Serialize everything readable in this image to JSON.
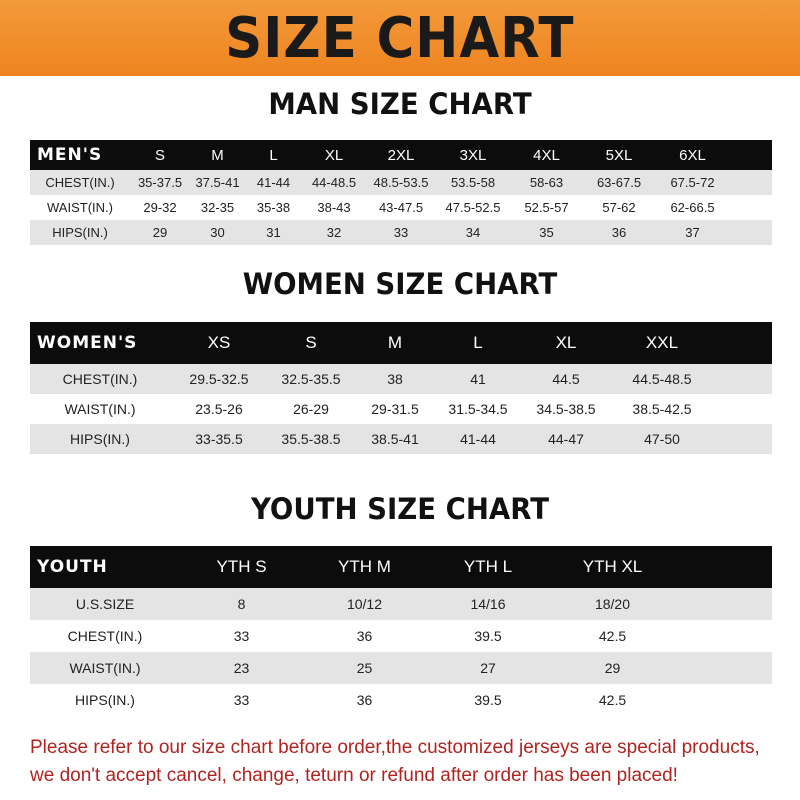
{
  "banner": {
    "title": "SIZE CHART",
    "color": "#ee8420"
  },
  "men": {
    "title": "MAN SIZE CHART",
    "header": [
      "MEN'S",
      "S",
      "M",
      "L",
      "XL",
      "2XL",
      "3XL",
      "4XL",
      "5XL",
      "6XL"
    ],
    "rows": [
      [
        "CHEST(IN.)",
        "35-37.5",
        "37.5-41",
        "41-44",
        "44-48.5",
        "48.5-53.5",
        "53.5-58",
        "58-63",
        "63-67.5",
        "67.5-72"
      ],
      [
        "WAIST(IN.)",
        "29-32",
        "32-35",
        "35-38",
        "38-43",
        "43-47.5",
        "47.5-52.5",
        "52.5-57",
        "57-62",
        "62-66.5"
      ],
      [
        "HIPS(IN.)",
        "29",
        "30",
        "31",
        "32",
        "33",
        "34",
        "35",
        "36",
        "37"
      ]
    ]
  },
  "women": {
    "title": "WOMEN SIZE CHART",
    "header": [
      "WOMEN'S",
      "XS",
      "S",
      "M",
      "L",
      "XL",
      "XXL"
    ],
    "rows": [
      [
        "CHEST(IN.)",
        "29.5-32.5",
        "32.5-35.5",
        "38",
        "41",
        "44.5",
        "44.5-48.5"
      ],
      [
        "WAIST(IN.)",
        "23.5-26",
        "26-29",
        "29-31.5",
        "31.5-34.5",
        "34.5-38.5",
        "38.5-42.5"
      ],
      [
        "HIPS(IN.)",
        "33-35.5",
        "35.5-38.5",
        "38.5-41",
        "41-44",
        "44-47",
        "47-50"
      ]
    ]
  },
  "youth": {
    "title": "YOUTH SIZE CHART",
    "header": [
      "YOUTH",
      "YTH S",
      "YTH M",
      "YTH L",
      "YTH XL"
    ],
    "rows": [
      [
        "U.S.SIZE",
        "8",
        "10/12",
        "14/16",
        "18/20"
      ],
      [
        "CHEST(IN.)",
        "33",
        "36",
        "39.5",
        "42.5"
      ],
      [
        "WAIST(IN.)",
        "23",
        "25",
        "27",
        "29"
      ],
      [
        "HIPS(IN.)",
        "33",
        "36",
        "39.5",
        "42.5"
      ]
    ]
  },
  "note": {
    "line1": "Please refer to our size chart before order,the customized jerseys are special products,",
    "line2": "we don't accept cancel, change, teturn or refund after order has been placed!",
    "color": "#b02420"
  }
}
